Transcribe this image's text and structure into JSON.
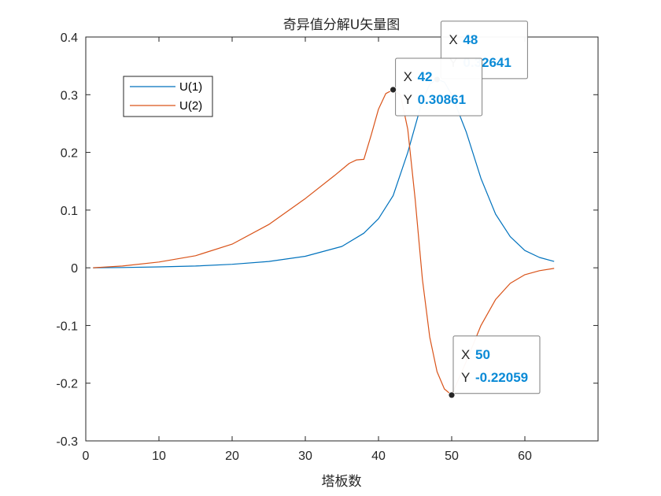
{
  "chart_data": {
    "type": "line",
    "title": "奇异值分解U矢量图",
    "xlabel": "塔板数",
    "ylabel": "",
    "xlim": [
      0,
      70
    ],
    "ylim": [
      -0.3,
      0.4
    ],
    "xticks": [
      0,
      10,
      20,
      30,
      40,
      50,
      60
    ],
    "yticks": [
      -0.3,
      -0.2,
      -0.1,
      0,
      0.1,
      0.2,
      0.3,
      0.4
    ],
    "xtick_labels": [
      "0",
      "10",
      "20",
      "30",
      "40",
      "50",
      "60"
    ],
    "ytick_labels": [
      "-0.3",
      "-0.2",
      "-0.1",
      "0",
      "0.1",
      "0.2",
      "0.3",
      "0.4"
    ],
    "grid": false,
    "legend_position": "top-left",
    "series": [
      {
        "name": "U(1)",
        "color": "#0072BD",
        "x": [
          1,
          5,
          10,
          15,
          20,
          25,
          30,
          35,
          38,
          40,
          42,
          44,
          46,
          47,
          48,
          49,
          50,
          52,
          54,
          56,
          58,
          60,
          62,
          64
        ],
        "y": [
          0.0,
          0.0005,
          0.0015,
          0.003,
          0.006,
          0.011,
          0.02,
          0.037,
          0.06,
          0.085,
          0.125,
          0.2,
          0.29,
          0.318,
          0.32641,
          0.322,
          0.3,
          0.235,
          0.155,
          0.093,
          0.054,
          0.03,
          0.018,
          0.011
        ]
      },
      {
        "name": "U(2)",
        "color": "#D95319",
        "x": [
          1,
          5,
          10,
          15,
          20,
          25,
          30,
          34,
          36,
          37,
          38,
          39,
          40,
          41,
          42,
          43,
          44,
          45,
          46,
          47,
          48,
          49,
          50,
          52,
          54,
          56,
          58,
          60,
          62,
          64
        ],
        "y": [
          0.0,
          0.003,
          0.01,
          0.021,
          0.041,
          0.075,
          0.12,
          0.16,
          0.181,
          0.187,
          0.188,
          0.23,
          0.275,
          0.302,
          0.30861,
          0.3,
          0.24,
          0.12,
          -0.02,
          -0.12,
          -0.18,
          -0.21,
          -0.22059,
          -0.162,
          -0.1,
          -0.055,
          -0.027,
          -0.012,
          -0.005,
          -0.001
        ]
      }
    ],
    "datatips": [
      {
        "x_key": "X",
        "x_value": "48",
        "y_key": "Y",
        "y_value": "0.32641",
        "series": "U(1)"
      },
      {
        "x_key": "X",
        "x_value": "42",
        "y_key": "Y",
        "y_value": "0.30861",
        "series": "U(2)"
      },
      {
        "x_key": "X",
        "x_value": "50",
        "y_key": "Y",
        "y_value": "-0.22059",
        "series": "U(2)"
      }
    ]
  }
}
